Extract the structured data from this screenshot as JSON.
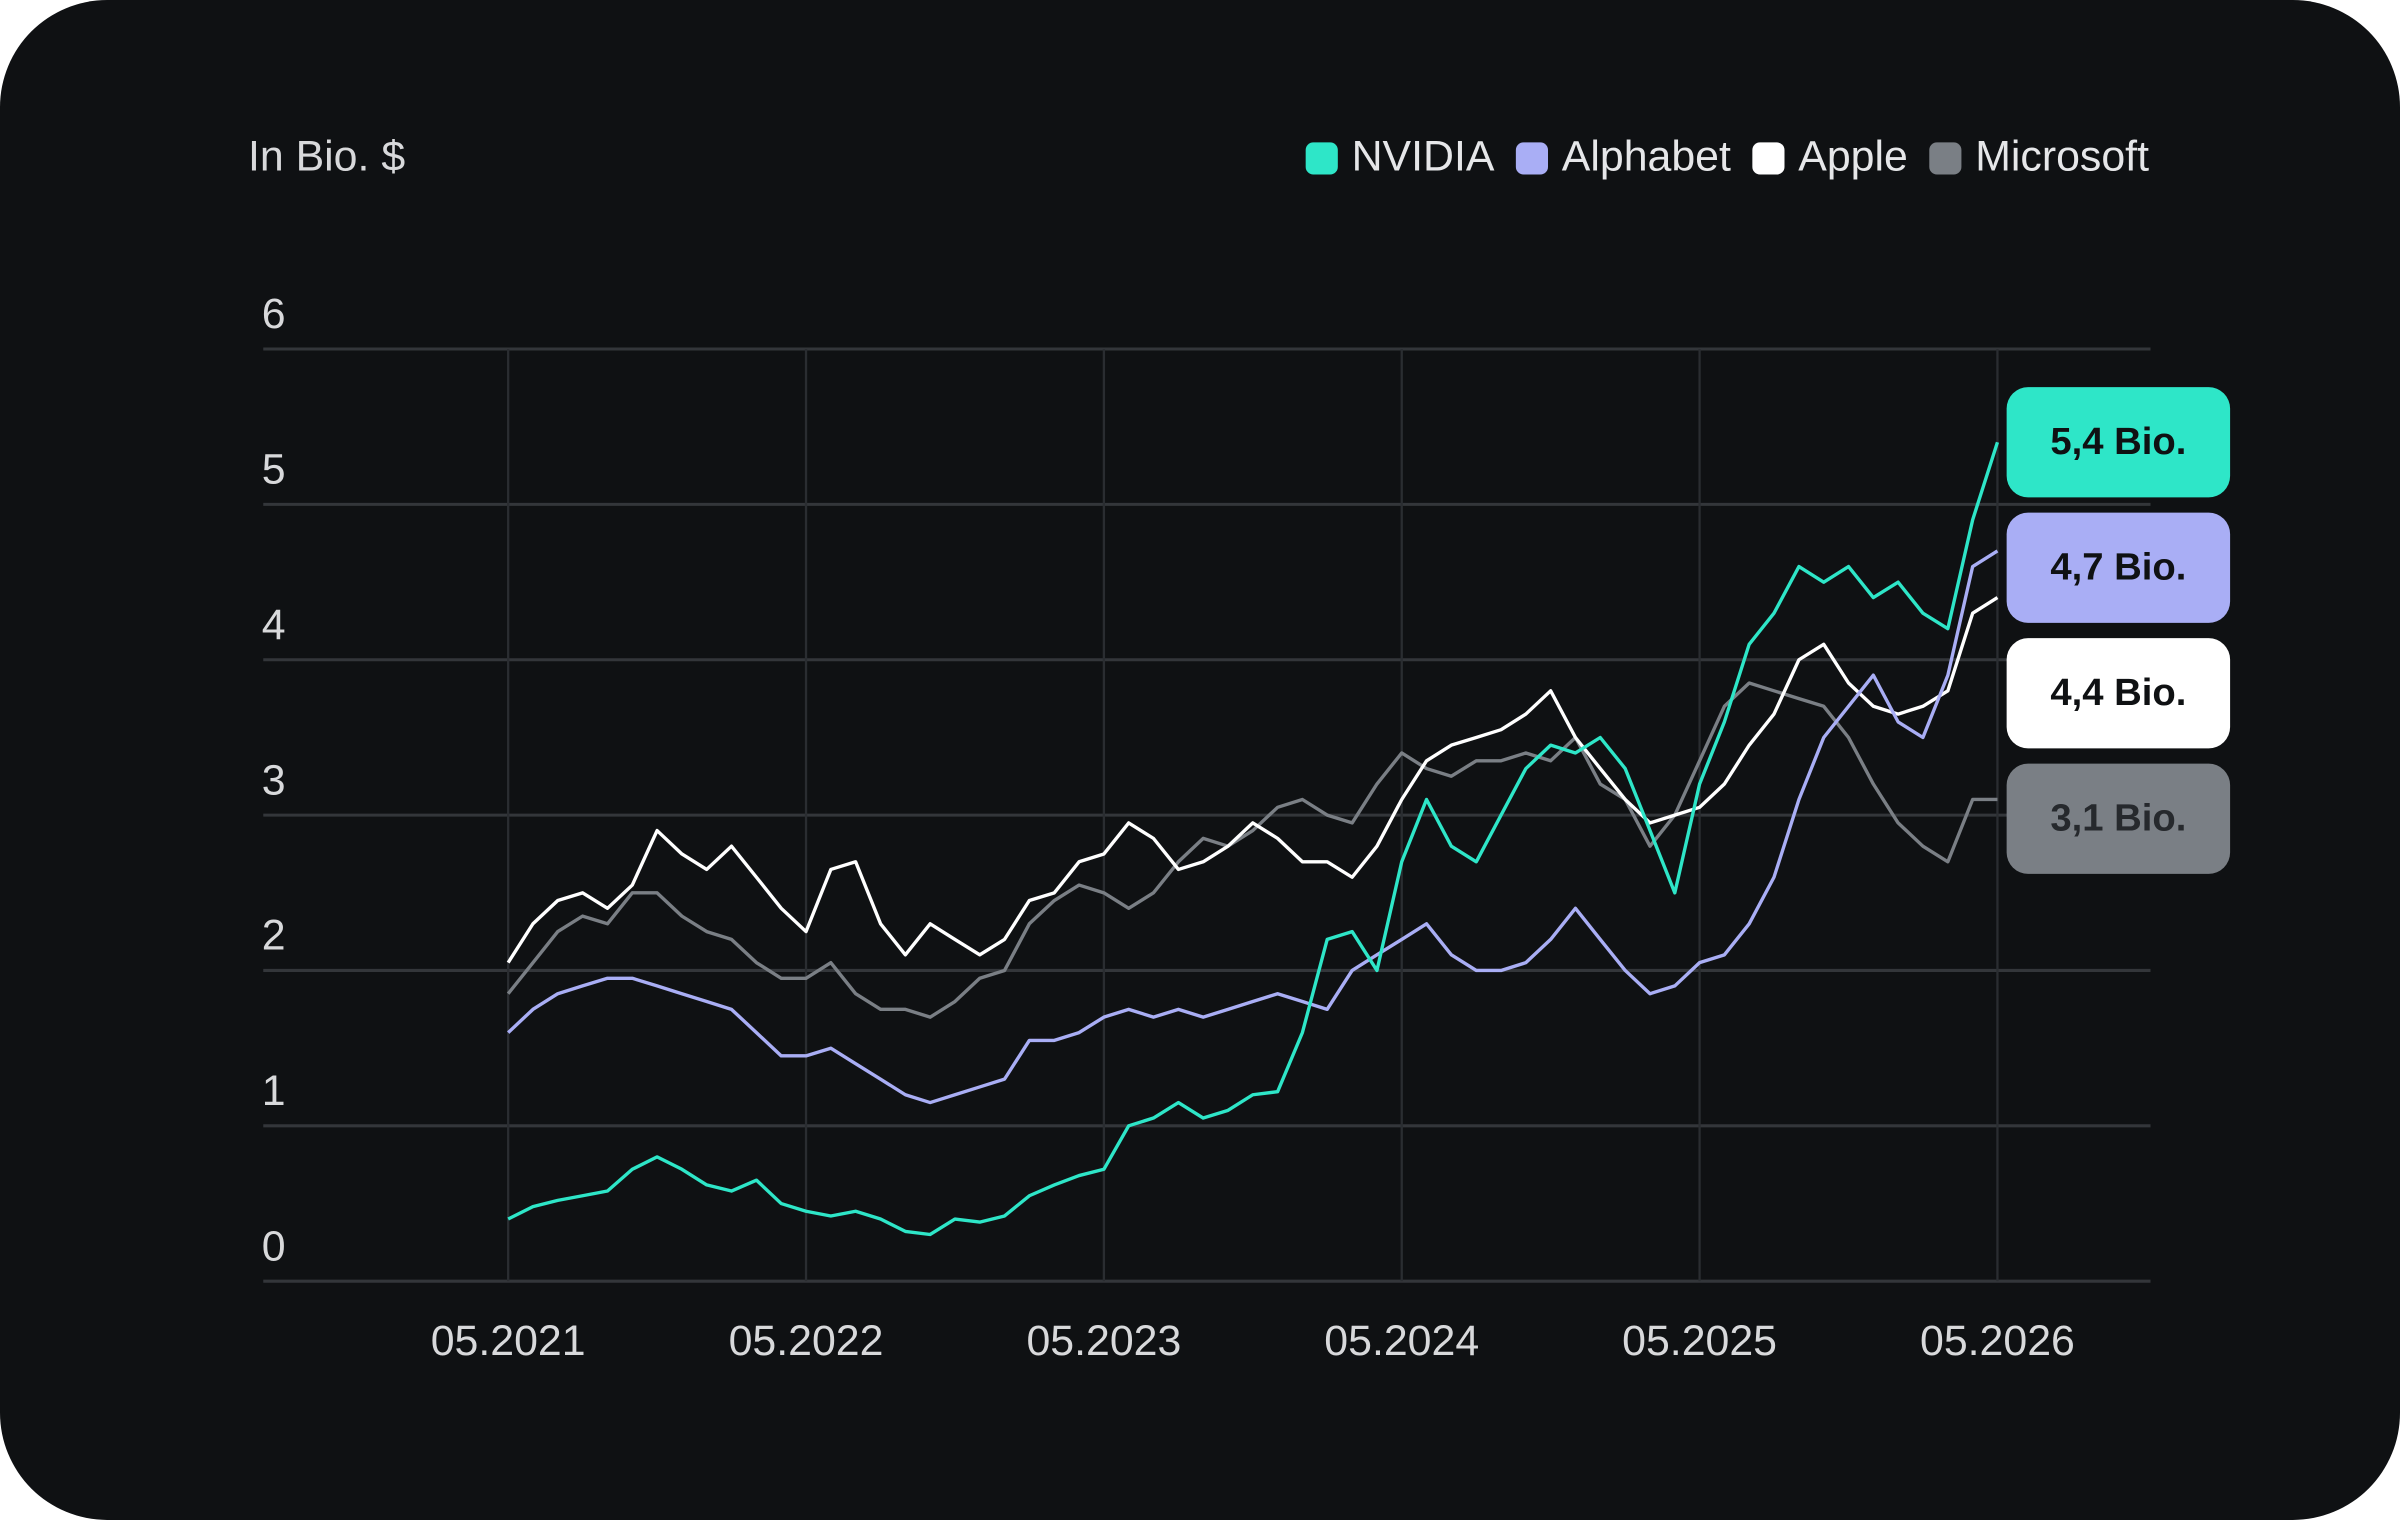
{
  "chart_data": {
    "type": "line",
    "y_label": "In Bio. $",
    "x": [
      "05.2021",
      "06.2021",
      "07.2021",
      "08.2021",
      "09.2021",
      "10.2021",
      "11.2021",
      "12.2021",
      "01.2022",
      "02.2022",
      "03.2022",
      "04.2022",
      "05.2022",
      "06.2022",
      "07.2022",
      "08.2022",
      "09.2022",
      "10.2022",
      "11.2022",
      "12.2022",
      "01.2023",
      "02.2023",
      "03.2023",
      "04.2023",
      "05.2023",
      "06.2023",
      "07.2023",
      "08.2023",
      "09.2023",
      "10.2023",
      "11.2023",
      "12.2023",
      "01.2024",
      "02.2024",
      "03.2024",
      "04.2024",
      "05.2024",
      "06.2024",
      "07.2024",
      "08.2024",
      "09.2024",
      "10.2024",
      "11.2024",
      "12.2024",
      "01.2025",
      "02.2025",
      "03.2025",
      "04.2025",
      "05.2025",
      "06.2025",
      "07.2025",
      "08.2025",
      "09.2025",
      "10.2025",
      "11.2025",
      "12.2025",
      "01.2026",
      "02.2026",
      "03.2026",
      "04.2026",
      "05.2026"
    ],
    "ylim": [
      0,
      6
    ],
    "yticks": [
      0,
      1,
      2,
      3,
      4,
      5,
      6
    ],
    "grid": true,
    "legend": "top-right",
    "series": [
      {
        "name": "NVIDIA",
        "color": "#2ee6c8",
        "end_label": "5,4 Bio.",
        "values": [
          0.4,
          0.48,
          0.52,
          0.55,
          0.58,
          0.72,
          0.8,
          0.72,
          0.62,
          0.58,
          0.65,
          0.5,
          0.45,
          0.42,
          0.45,
          0.4,
          0.32,
          0.3,
          0.4,
          0.38,
          0.42,
          0.55,
          0.62,
          0.68,
          0.72,
          1.0,
          1.05,
          1.15,
          1.05,
          1.1,
          1.2,
          1.22,
          1.6,
          2.2,
          2.25,
          2.0,
          2.7,
          3.1,
          2.8,
          2.7,
          3.0,
          3.3,
          3.45,
          3.4,
          3.5,
          3.3,
          2.9,
          2.5,
          3.2,
          3.6,
          4.1,
          4.3,
          4.6,
          4.5,
          4.6,
          4.4,
          4.5,
          4.3,
          4.2,
          4.9,
          5.4
        ]
      },
      {
        "name": "Alphabet",
        "color": "#a9aef5",
        "end_label": "4,7 Bio.",
        "values": [
          1.6,
          1.75,
          1.85,
          1.9,
          1.95,
          1.95,
          1.9,
          1.85,
          1.8,
          1.75,
          1.6,
          1.45,
          1.45,
          1.5,
          1.4,
          1.3,
          1.2,
          1.15,
          1.2,
          1.25,
          1.3,
          1.55,
          1.55,
          1.6,
          1.7,
          1.75,
          1.7,
          1.75,
          1.7,
          1.75,
          1.8,
          1.85,
          1.8,
          1.75,
          2.0,
          2.1,
          2.2,
          2.3,
          2.1,
          2.0,
          2.0,
          2.05,
          2.2,
          2.4,
          2.2,
          2.0,
          1.85,
          1.9,
          2.05,
          2.1,
          2.3,
          2.6,
          3.1,
          3.5,
          3.7,
          3.9,
          3.6,
          3.5,
          3.9,
          4.6,
          4.7
        ]
      },
      {
        "name": "Apple",
        "color": "#ffffff",
        "end_label": "4,4 Bio.",
        "values": [
          2.05,
          2.3,
          2.45,
          2.5,
          2.4,
          2.55,
          2.9,
          2.75,
          2.65,
          2.8,
          2.6,
          2.4,
          2.25,
          2.65,
          2.7,
          2.3,
          2.1,
          2.3,
          2.2,
          2.1,
          2.2,
          2.45,
          2.5,
          2.7,
          2.75,
          2.95,
          2.85,
          2.65,
          2.7,
          2.8,
          2.95,
          2.85,
          2.7,
          2.7,
          2.6,
          2.8,
          3.1,
          3.35,
          3.45,
          3.5,
          3.55,
          3.65,
          3.8,
          3.5,
          3.3,
          3.1,
          2.95,
          3.0,
          3.05,
          3.2,
          3.45,
          3.65,
          4.0,
          4.1,
          3.85,
          3.7,
          3.65,
          3.7,
          3.8,
          4.3,
          4.4
        ]
      },
      {
        "name": "Microsoft",
        "color": "#7a7f85",
        "end_label": "3,1 Bio.",
        "values": [
          1.85,
          2.05,
          2.25,
          2.35,
          2.3,
          2.5,
          2.5,
          2.35,
          2.25,
          2.2,
          2.05,
          1.95,
          1.95,
          2.05,
          1.85,
          1.75,
          1.75,
          1.7,
          1.8,
          1.95,
          2.0,
          2.3,
          2.45,
          2.55,
          2.5,
          2.4,
          2.5,
          2.7,
          2.85,
          2.8,
          2.9,
          3.05,
          3.1,
          3.0,
          2.95,
          3.2,
          3.4,
          3.3,
          3.25,
          3.35,
          3.35,
          3.4,
          3.35,
          3.5,
          3.2,
          3.1,
          2.8,
          3.0,
          3.35,
          3.7,
          3.85,
          3.8,
          3.75,
          3.7,
          3.5,
          3.2,
          2.95,
          2.8,
          2.7,
          3.1,
          3.1
        ]
      }
    ]
  }
}
